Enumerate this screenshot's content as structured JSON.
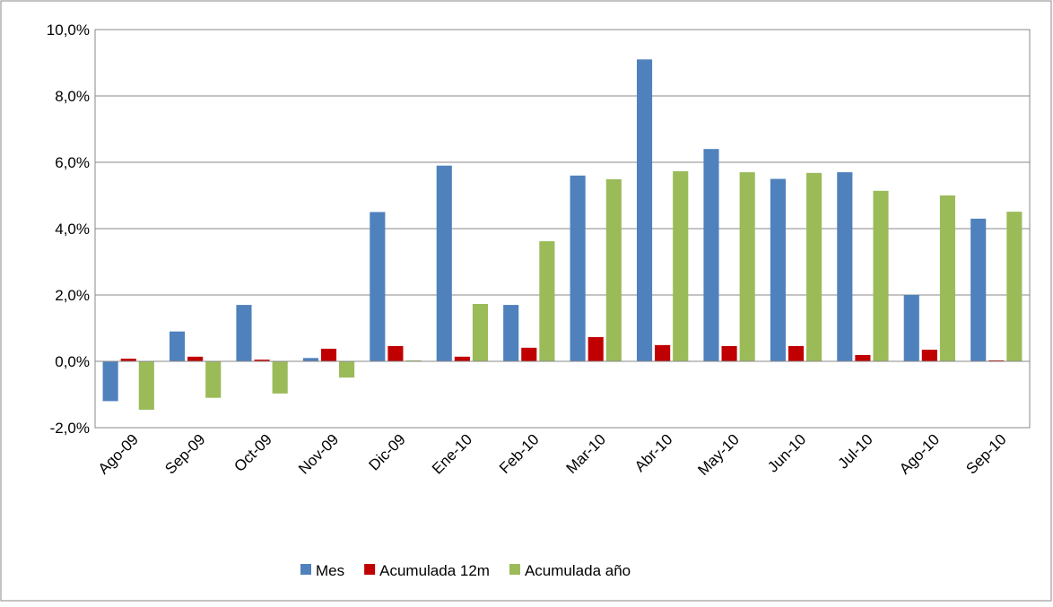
{
  "chart_data": {
    "type": "bar",
    "categories": [
      "Ago-09",
      "Sep-09",
      "Oct-09",
      "Nov-09",
      "Dic-09",
      "Ene-10",
      "Feb-10",
      "Mar-10",
      "Abr-10",
      "May-10",
      "Jun-10",
      "Jul-10",
      "Ago-10",
      "Sep-10"
    ],
    "series": [
      {
        "name": "Mes",
        "color": "#4f81bd",
        "values": [
          -1.2,
          0.9,
          1.7,
          0.1,
          4.5,
          5.9,
          1.7,
          5.6,
          9.1,
          6.4,
          5.5,
          5.7,
          2.0,
          4.3
        ]
      },
      {
        "name": "Acumulada 12m",
        "color": "#c00000",
        "values": [
          0.08,
          0.14,
          0.05,
          0.38,
          0.46,
          0.14,
          0.41,
          0.73,
          0.49,
          0.46,
          0.46,
          0.19,
          0.35,
          0.03
        ]
      },
      {
        "name": "Acumulada año",
        "color": "#9bbb59",
        "values": [
          -1.46,
          -1.1,
          -0.97,
          -0.49,
          0.03,
          1.73,
          3.62,
          5.49,
          5.73,
          5.7,
          5.68,
          5.14,
          5.0,
          4.51
        ]
      }
    ],
    "ylim": [
      -2,
      10
    ],
    "yticks": [
      {
        "value": -2,
        "label": "-2,0%"
      },
      {
        "value": 0,
        "label": "0,0%"
      },
      {
        "value": 2,
        "label": "2,0%"
      },
      {
        "value": 4,
        "label": "4,0%"
      },
      {
        "value": 6,
        "label": "6,0%"
      },
      {
        "value": 8,
        "label": "8,0%"
      },
      {
        "value": 10,
        "label": "10,0%"
      }
    ],
    "grid": true,
    "legend": "bottom"
  }
}
